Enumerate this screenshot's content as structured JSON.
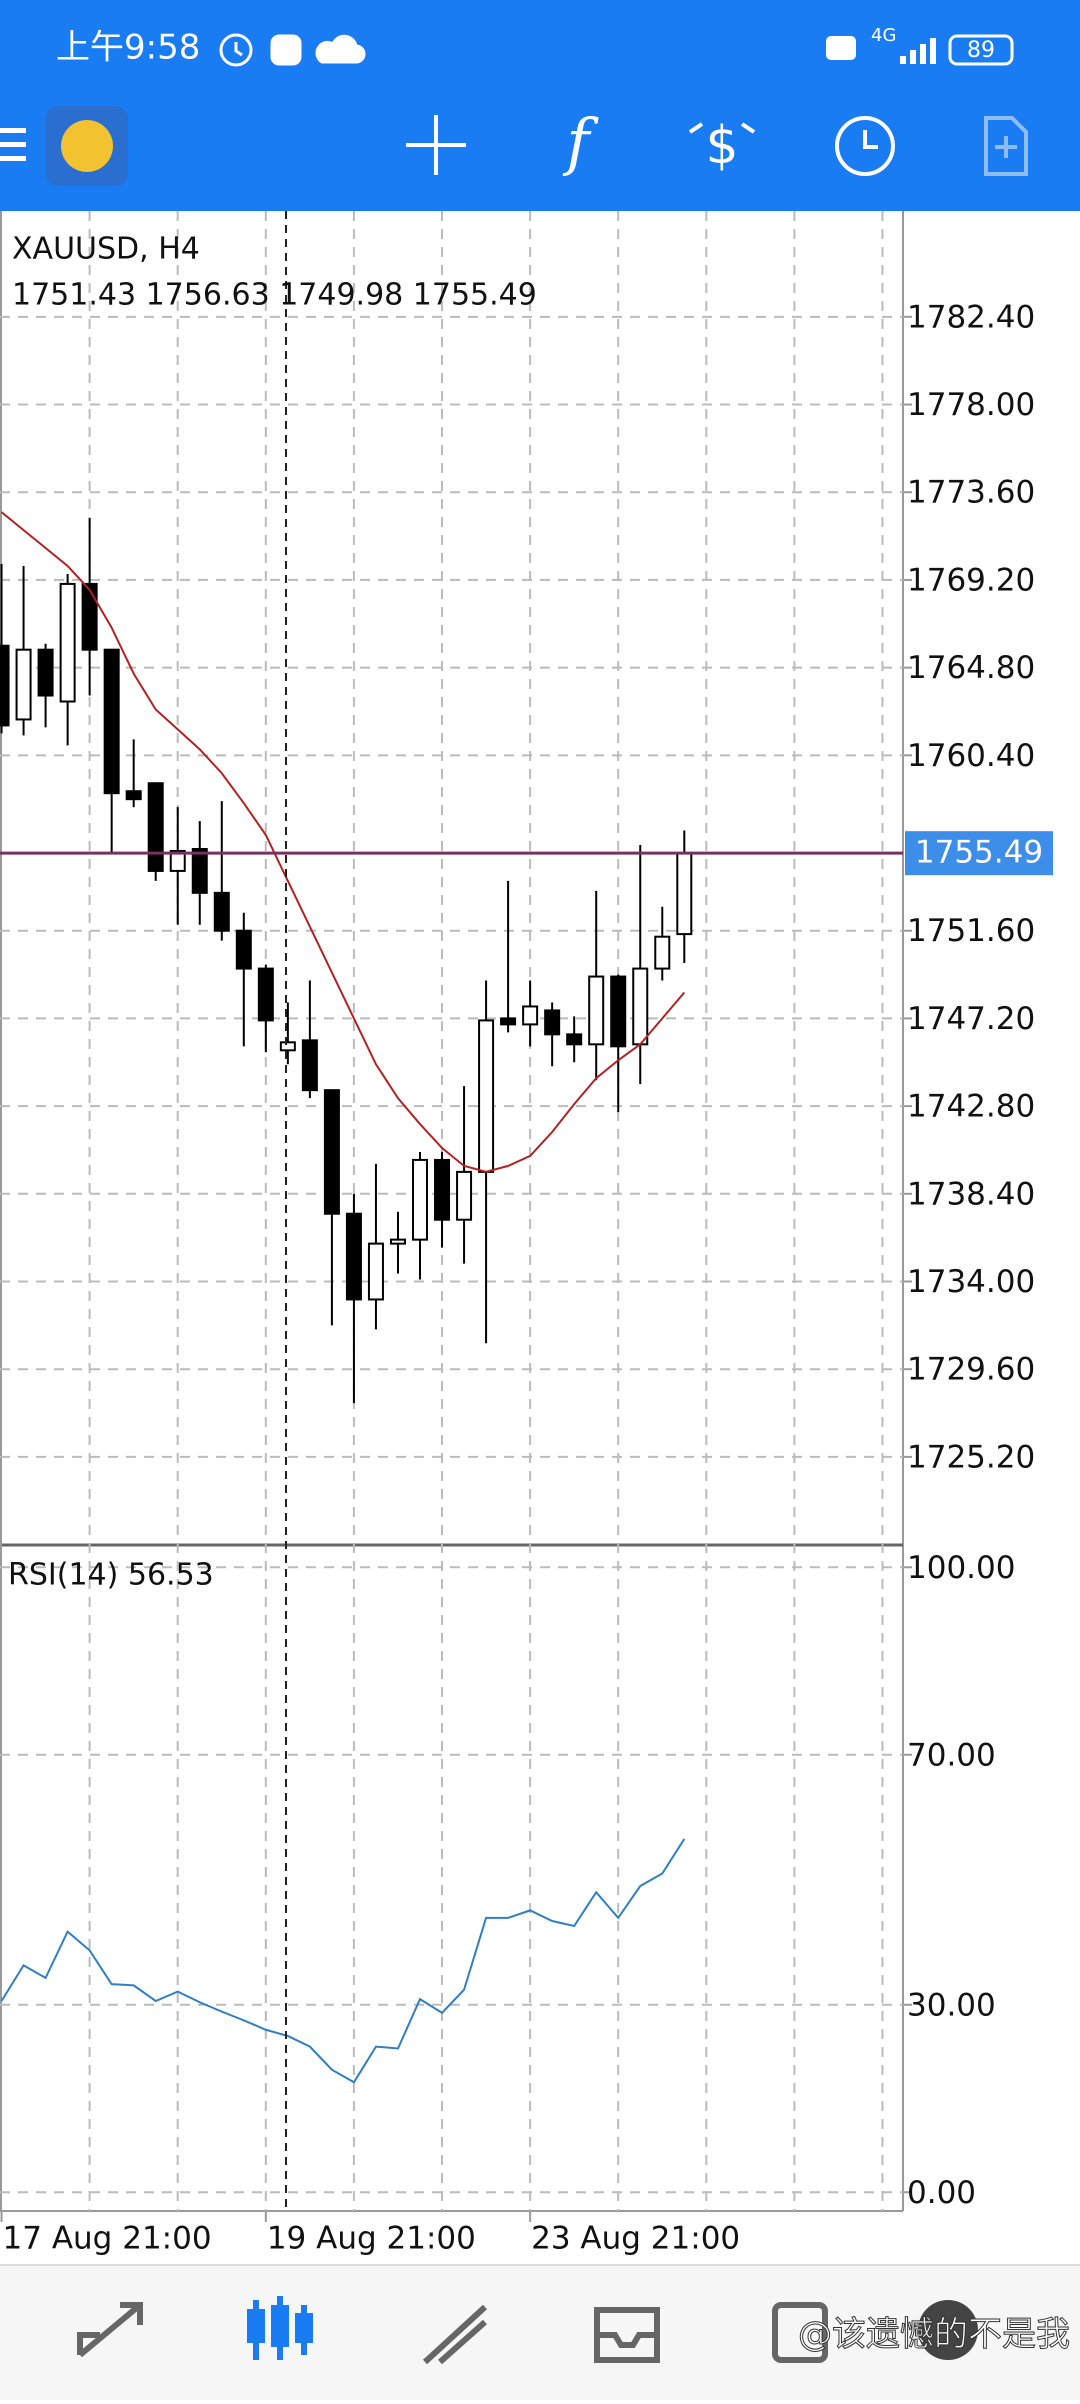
{
  "status_bar": {
    "time": "上午9:58",
    "network": "4G",
    "battery": "89"
  },
  "chart_data": [
    {
      "type": "candlestick",
      "title": "XAUUSD, H4",
      "subtitle": "1751.43 1756.63 1749.98 1755.49",
      "x": [
        0,
        1,
        2,
        3,
        4,
        5,
        6,
        7,
        8,
        9,
        10,
        11,
        12,
        13,
        14,
        15,
        16,
        17,
        18,
        19,
        20,
        21,
        22,
        23,
        24,
        25,
        26,
        27,
        28,
        29,
        30,
        31
      ],
      "open": [
        1765.9,
        1762.2,
        1765.7,
        1763.1,
        1769.0,
        1765.7,
        1758.6,
        1759.0,
        1754.6,
        1755.7,
        1753.5,
        1751.6,
        1749.7,
        1745.6,
        1746.1,
        1743.6,
        1737.4,
        1733.1,
        1735.9,
        1736.1,
        1740.1,
        1737.1,
        1739.5,
        1747.2,
        1746.9,
        1747.6,
        1746.4,
        1745.9,
        1749.3,
        1745.9,
        1749.7,
        1751.43
      ],
      "high": [
        1770.0,
        1769.9,
        1766.0,
        1769.5,
        1772.3,
        1765.7,
        1761.2,
        1759.0,
        1757.8,
        1757.1,
        1758.1,
        1752.5,
        1749.9,
        1748.0,
        1749.1,
        1743.6,
        1738.4,
        1739.9,
        1737.5,
        1740.5,
        1740.5,
        1743.8,
        1749.1,
        1754.1,
        1749.1,
        1748.0,
        1747.3,
        1753.6,
        1749.4,
        1755.9,
        1752.8,
        1756.63
      ],
      "low": [
        1761.5,
        1761.4,
        1761.8,
        1760.9,
        1763.4,
        1755.5,
        1757.8,
        1754.1,
        1751.9,
        1751.9,
        1751.1,
        1745.8,
        1745.5,
        1744.9,
        1743.2,
        1731.8,
        1727.9,
        1731.6,
        1734.4,
        1734.1,
        1735.7,
        1734.9,
        1730.9,
        1746.5,
        1745.8,
        1744.8,
        1745.0,
        1744.1,
        1742.5,
        1743.9,
        1749.1,
        1749.98
      ],
      "close": [
        1761.9,
        1765.7,
        1763.4,
        1769.0,
        1765.7,
        1758.5,
        1758.2,
        1754.6,
        1755.6,
        1753.5,
        1751.6,
        1749.7,
        1747.1,
        1746.0,
        1743.6,
        1737.4,
        1733.1,
        1735.9,
        1736.1,
        1740.1,
        1737.1,
        1739.5,
        1747.1,
        1746.9,
        1747.8,
        1746.4,
        1745.9,
        1749.3,
        1745.8,
        1749.7,
        1751.3,
        1755.49
      ],
      "up_color": "#ffffff",
      "down_color": "#000000",
      "ma": {
        "color": "#b22222",
        "values": [
          1772.6,
          1771.7,
          1770.8,
          1769.9,
          1768.7,
          1766.8,
          1764.5,
          1762.7,
          1761.7,
          1760.7,
          1759.5,
          1758.0,
          1756.4,
          1754.1,
          1751.8,
          1749.5,
          1747.2,
          1744.9,
          1743.2,
          1741.9,
          1740.7,
          1739.8,
          1739.5,
          1739.8,
          1740.3,
          1741.5,
          1742.9,
          1744.2,
          1745.1,
          1745.9,
          1747.2,
          1748.5
        ]
      },
      "last_price": {
        "value": 1755.49,
        "label": "1755.49",
        "color": "#7a3060",
        "box_color": "#3d8ee8"
      },
      "xlim": [
        -0.07,
        40.93
      ],
      "xticks": [
        {
          "value": 0,
          "label": "17 Aug 21:00"
        },
        {
          "value": 12,
          "label": "19 Aug 21:00"
        },
        {
          "value": 24,
          "label": "23 Aug 21:00"
        }
      ],
      "ylim": [
        1720.88,
        1787.71
      ],
      "yticks": [
        {
          "value": 1725.2,
          "label": "1725.20"
        },
        {
          "value": 1729.6,
          "label": "1729.60"
        },
        {
          "value": 1734,
          "label": "1734.00"
        },
        {
          "value": 1738.4,
          "label": "1738.40"
        },
        {
          "value": 1742.8,
          "label": "1742.80"
        },
        {
          "value": 1747.2,
          "label": "1747.20"
        },
        {
          "value": 1751.6,
          "label": "1751.60"
        },
        {
          "value": 1760.4,
          "label": "1760.40"
        },
        {
          "value": 1764.8,
          "label": "1764.80"
        },
        {
          "value": 1769.2,
          "label": "1769.20"
        },
        {
          "value": 1773.6,
          "label": "1773.60"
        },
        {
          "value": 1778,
          "label": "1778.00"
        },
        {
          "value": 1782.4,
          "label": "1782.40"
        }
      ],
      "grid": true
    },
    {
      "type": "line",
      "title": "RSI(14) 56.53",
      "x": [
        0,
        1,
        2,
        3,
        4,
        5,
        6,
        7,
        8,
        9,
        10,
        11,
        12,
        13,
        14,
        15,
        16,
        17,
        18,
        19,
        20,
        21,
        22,
        23,
        24,
        25,
        26,
        27,
        28,
        29,
        30,
        31
      ],
      "values": [
        30.6,
        36.3,
        34.3,
        41.7,
        38.7,
        33.3,
        33.1,
        30.6,
        32.1,
        30.4,
        28.9,
        27.5,
        26.0,
        25.0,
        23.3,
        19.6,
        17.6,
        23.3,
        23.0,
        30.9,
        28.7,
        32.4,
        43.9,
        43.9,
        45.1,
        43.4,
        42.6,
        48.0,
        43.9,
        49.0,
        51.0,
        56.53
      ],
      "color": "#2f7fc1",
      "xlim": [
        -0.07,
        40.93
      ],
      "ylim": [
        -3,
        103.4
      ],
      "yticks": [
        {
          "value": 0,
          "label": "0.00"
        },
        {
          "value": 30,
          "label": "30.00"
        },
        {
          "value": 70,
          "label": "70.00"
        },
        {
          "value": 100,
          "label": "100.00"
        }
      ],
      "grid": true
    }
  ],
  "watermark": "@该遗憾的不是我"
}
